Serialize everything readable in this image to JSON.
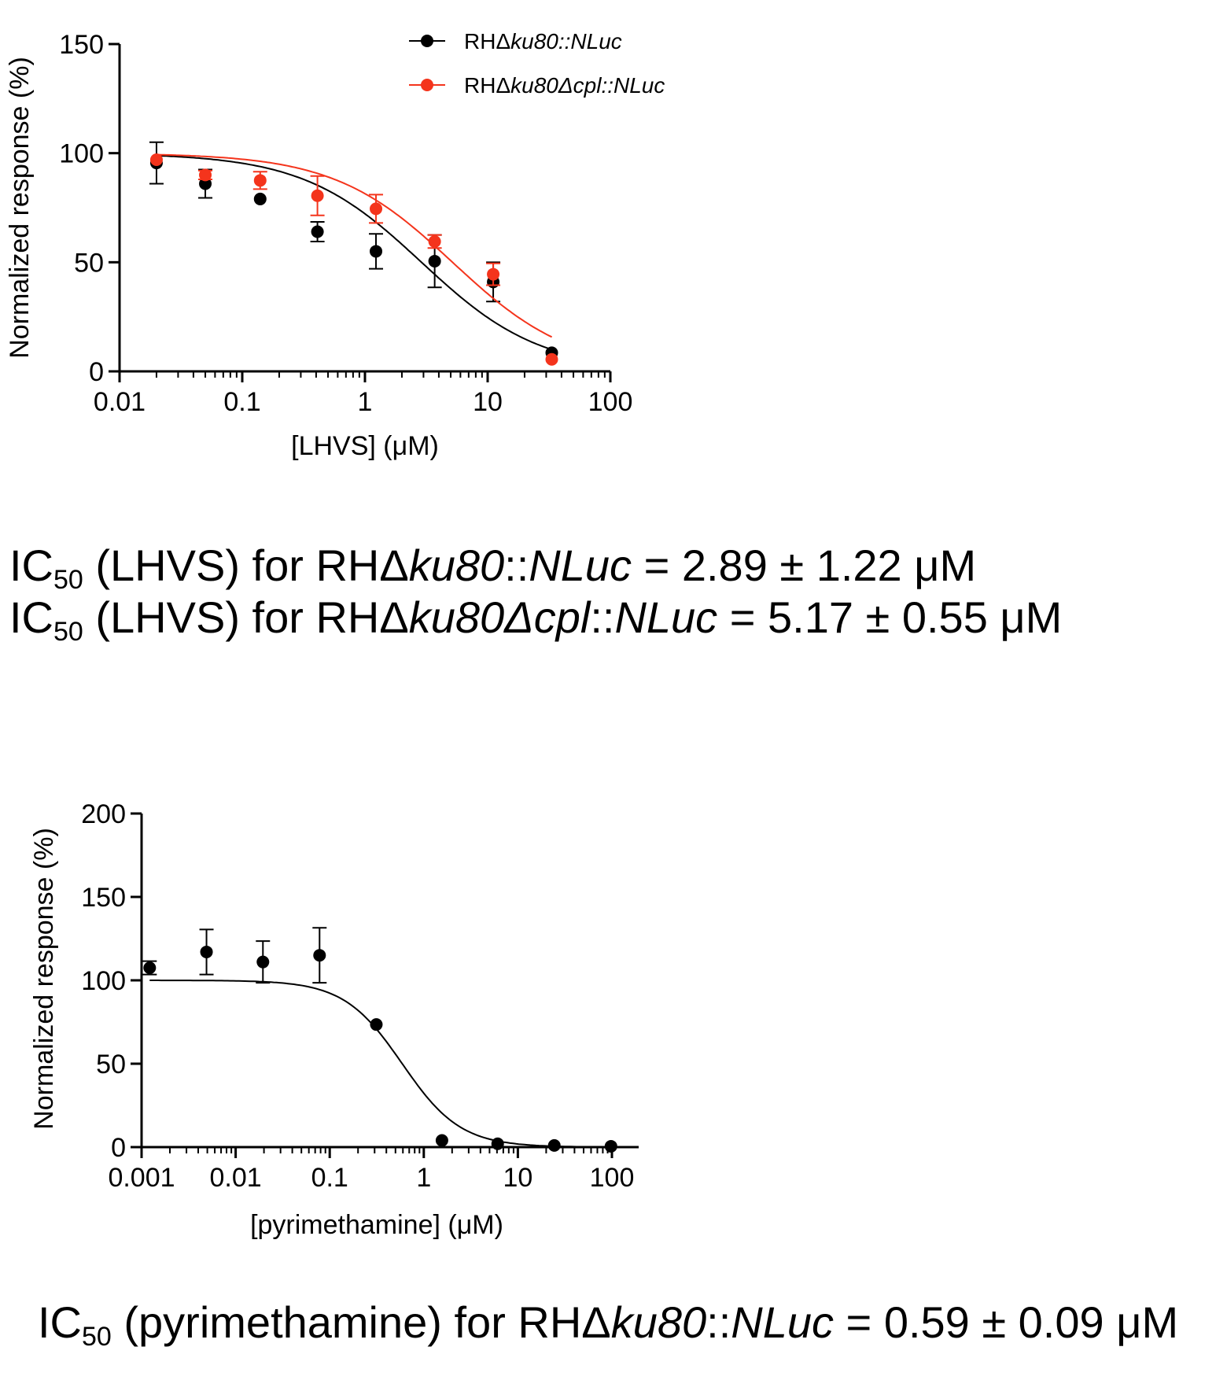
{
  "chart_data": [
    {
      "type": "scatter",
      "x_scale": "log",
      "xlabel": "[LHVS] (μM)",
      "ylabel": "Normalized response (%)",
      "xlim": [
        0.01,
        100
      ],
      "ylim": [
        0,
        150
      ],
      "x_ticks": [
        "0.01",
        "0.1",
        "1",
        "10",
        "100"
      ],
      "y_ticks": [
        "0",
        "50",
        "100",
        "150"
      ],
      "legend_position": "top",
      "series": [
        {
          "name": "RHΔku80::NLuc",
          "legend_prefix": "RHΔ",
          "legend_italic": "ku80::NLuc",
          "color": "#000000",
          "x": [
            0.02,
            0.05,
            0.14,
            0.41,
            1.23,
            3.7,
            11.1,
            33.3
          ],
          "y": [
            95.5,
            86,
            79,
            64,
            55,
            50.5,
            41,
            8.5
          ],
          "err": [
            9.5,
            6.5,
            0,
            4.5,
            8,
            12,
            9,
            0
          ],
          "fit_ic50": 2.89,
          "fit_hill": 0.9
        },
        {
          "name": "RHΔku80Δcpl::NLuc",
          "legend_prefix": "RHΔ",
          "legend_italic": "ku80Δcpl::NLuc",
          "color": "#f4341c",
          "x": [
            0.02,
            0.05,
            0.14,
            0.41,
            1.23,
            3.7,
            11.1,
            33.3
          ],
          "y": [
            97,
            90,
            87.5,
            80.5,
            74.5,
            59.5,
            44.5,
            5.5
          ],
          "err": [
            0,
            2,
            4,
            9,
            6.5,
            3,
            5,
            0
          ],
          "fit_ic50": 5.17,
          "fit_hill": 0.9
        }
      ]
    },
    {
      "type": "scatter",
      "x_scale": "log",
      "xlabel": "[pyrimethamine] (μM)",
      "ylabel": "Normalized response (%)",
      "xlim": [
        0.001,
        200
      ],
      "ylim": [
        0,
        200
      ],
      "x_ticks": [
        "0.001",
        "0.01",
        "0.1",
        "1",
        "10",
        "100"
      ],
      "y_ticks": [
        "0",
        "50",
        "100",
        "150",
        "200"
      ],
      "series": [
        {
          "name": "RHΔku80::NLuc",
          "color": "#000000",
          "x": [
            0.00122,
            0.0049,
            0.0195,
            0.078,
            0.313,
            1.56,
            6.1,
            24.4,
            97.7
          ],
          "y": [
            107.5,
            117,
            111,
            115,
            73.5,
            4,
            2,
            1,
            0.5
          ],
          "err": [
            4,
            13.5,
            12.5,
            16.5,
            0,
            0,
            0,
            0,
            0
          ],
          "fit_ic50": 0.59,
          "fit_hill": 1.4
        }
      ]
    }
  ],
  "ic50_lines": [
    {
      "pre": "IC",
      "sub": "50",
      "mid": " (LHVS) for RHΔ",
      "it1": "ku80",
      "mid2": "::",
      "it2": "NLuc",
      "post": " = 2.89 ± 1.22 μM"
    },
    {
      "pre": "IC",
      "sub": "50",
      "mid": " (LHVS) for RHΔ",
      "it1": "ku80Δcpl",
      "mid2": "::",
      "it2": "NLuc",
      "post": " = 5.17 ± 0.55 μM"
    },
    {
      "pre": "IC",
      "sub": "50",
      "mid": " (pyrimethamine) for RHΔ",
      "it1": "ku80",
      "mid2": "::",
      "it2": "NLuc",
      "post": " = 0.59 ± 0.09 μM"
    }
  ]
}
